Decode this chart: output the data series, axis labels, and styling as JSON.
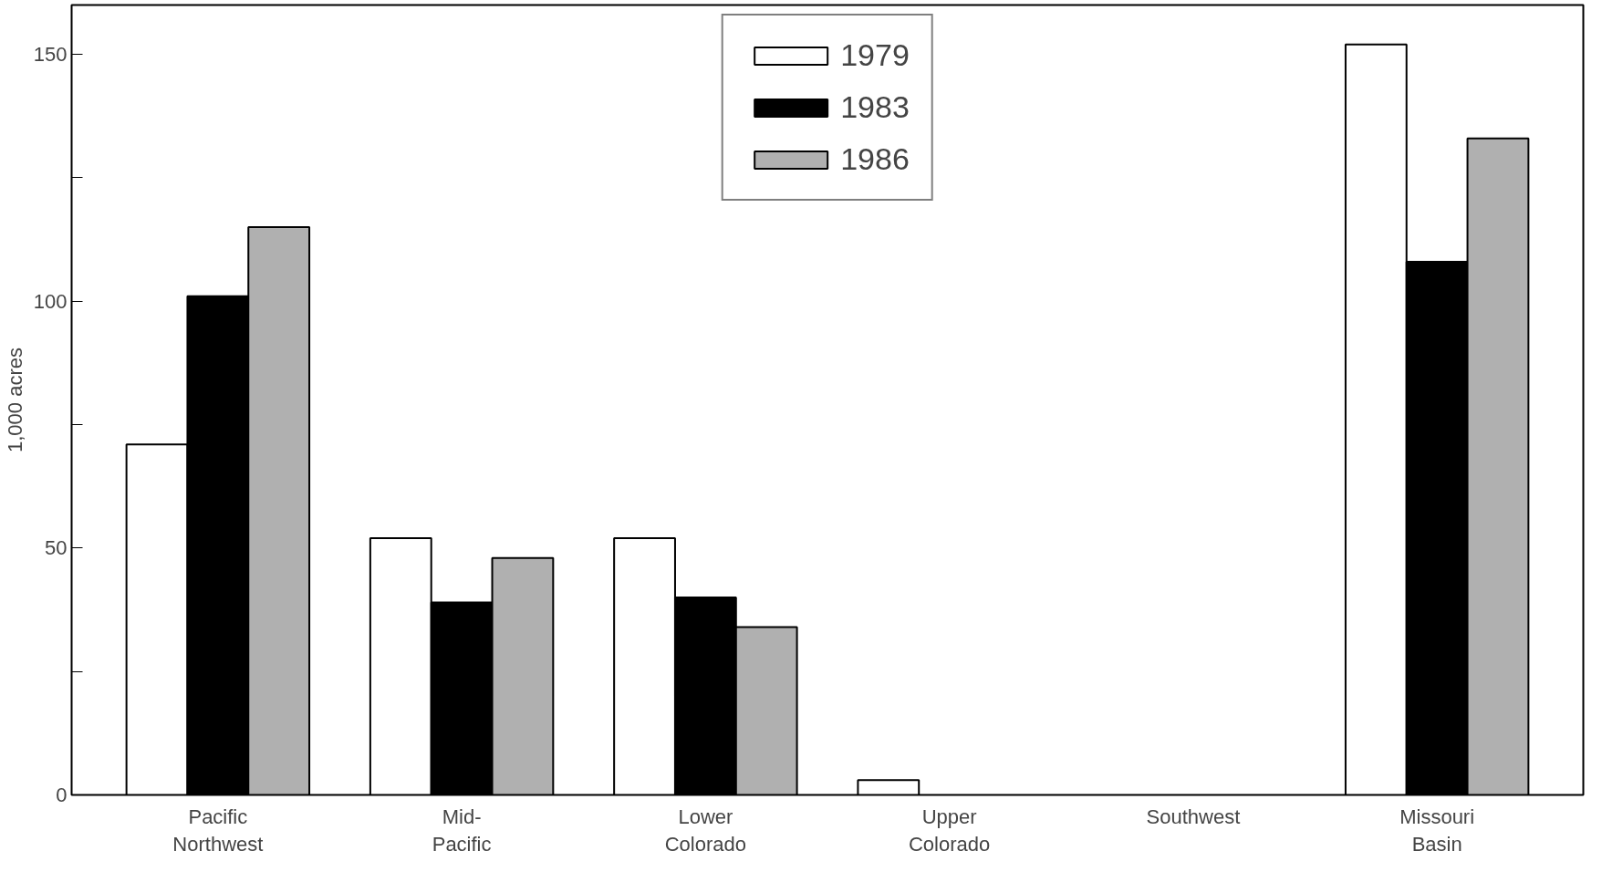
{
  "chart_data": {
    "type": "bar",
    "ylabel": "1,000 acres",
    "categories": [
      "Pacific\nNorthwest",
      "Mid-\nPacific",
      "Lower\nColorado",
      "Upper\nColorado",
      "Southwest",
      "Missouri\nBasin"
    ],
    "series": [
      {
        "name": "1979",
        "color": "#ffffff",
        "values": [
          71,
          52,
          52,
          3,
          null,
          152
        ]
      },
      {
        "name": "1983",
        "color": "#000000",
        "values": [
          101,
          39,
          40,
          null,
          null,
          108
        ]
      },
      {
        "name": "1986",
        "color": "#b0b0b0",
        "values": [
          115,
          48,
          34,
          null,
          null,
          133
        ]
      }
    ],
    "ylim": [
      0,
      160
    ],
    "yticks": [
      0,
      {
        "value": 25,
        "label": null
      },
      50,
      {
        "value": 75,
        "label": null
      },
      100,
      {
        "value": 125,
        "label": null
      },
      150
    ],
    "grid": false,
    "legend": "top"
  }
}
